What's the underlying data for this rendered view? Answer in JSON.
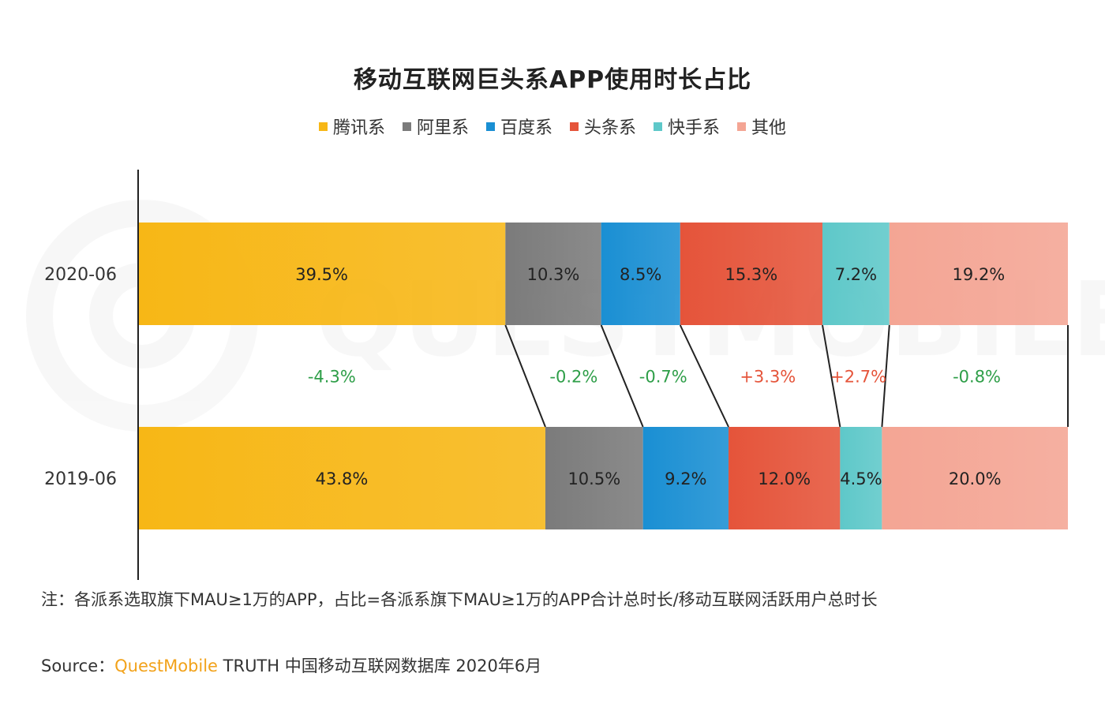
{
  "chart_data": {
    "type": "bar",
    "orientation": "horizontal",
    "stacked": true,
    "title": "移动互联网巨头系APP使用时长占比",
    "categories": [
      "2020-06",
      "2019-06"
    ],
    "series": [
      {
        "name": "腾讯系",
        "color": "#f7b716",
        "values": [
          39.5,
          43.8
        ],
        "labels": [
          "39.5%",
          "43.8%"
        ]
      },
      {
        "name": "阿里系",
        "color": "#7b7b7b",
        "values": [
          10.3,
          10.5
        ],
        "labels": [
          "10.3%",
          "10.5%"
        ]
      },
      {
        "name": "百度系",
        "color": "#1a8fd3",
        "values": [
          8.5,
          9.2
        ],
        "labels": [
          "8.5%",
          "9.2%"
        ]
      },
      {
        "name": "头条系",
        "color": "#e5543a",
        "values": [
          15.3,
          12.0
        ],
        "labels": [
          "15.3%",
          "12.0%"
        ]
      },
      {
        "name": "快手系",
        "color": "#5ec8c9",
        "values": [
          7.2,
          4.5
        ],
        "labels": [
          "7.2%",
          "4.5%"
        ]
      },
      {
        "name": "其他",
        "color": "#f4a594",
        "values": [
          19.2,
          20.0
        ],
        "labels": [
          "19.2%",
          "20.0%"
        ]
      }
    ],
    "changes": [
      {
        "label": "-4.3%",
        "direction": "down"
      },
      {
        "label": "-0.2%",
        "direction": "down"
      },
      {
        "label": "-0.7%",
        "direction": "down"
      },
      {
        "label": "+3.3%",
        "direction": "up"
      },
      {
        "label": "+2.7%",
        "direction": "up"
      },
      {
        "label": "-0.8%",
        "direction": "down"
      }
    ],
    "change_colors": {
      "up": "#e5543a",
      "down": "#2e9e48"
    },
    "legend_position": "top",
    "grid": false,
    "xlim": [
      0,
      100
    ]
  },
  "footnote": "注：各派系选取旗下MAU≥1万的APP，占比=各派系旗下MAU≥1万的APP合计总时长/移动互联网活跃用户总时长",
  "source": {
    "prefix": "Source：",
    "brand": "QuestMobile",
    "rest": " TRUTH 中国移动互联网数据库 2020年6月"
  },
  "watermark": "QUESTMOBILE"
}
